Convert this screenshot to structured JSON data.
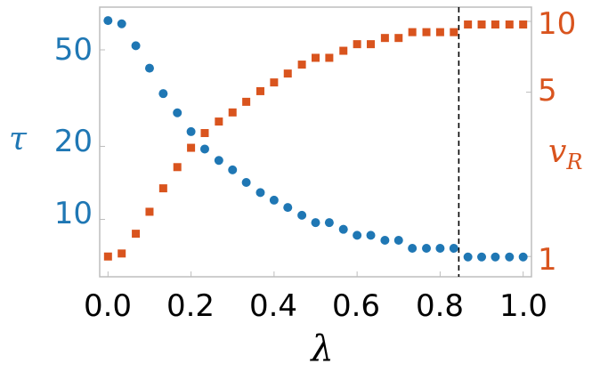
{
  "chart_data": {
    "type": "scatter",
    "title": "",
    "xlabel": "λ",
    "ylabel_left": "τ",
    "ylabel_right_main": "v",
    "ylabel_right_sub": "R",
    "xlim": [
      -0.02,
      1.02
    ],
    "ylim_left": [
      5.8,
      75
    ],
    "ylim_right": [
      0.82,
      11.5
    ],
    "yscale": "log",
    "x_ticks": [
      "0.0",
      "0.2",
      "0.4",
      "0.6",
      "0.8",
      "1.0"
    ],
    "y_left_ticks": [
      "10",
      "20",
      "50"
    ],
    "y_right_ticks": [
      "1",
      "5",
      "10"
    ],
    "vline_x": 0.845,
    "x": [
      0.0,
      0.033,
      0.067,
      0.1,
      0.133,
      0.167,
      0.2,
      0.233,
      0.267,
      0.3,
      0.333,
      0.367,
      0.4,
      0.433,
      0.467,
      0.5,
      0.533,
      0.567,
      0.6,
      0.633,
      0.667,
      0.7,
      0.733,
      0.767,
      0.8,
      0.833,
      0.867,
      0.9,
      0.933,
      0.967,
      1.0
    ],
    "series": [
      {
        "name": "τ",
        "axis": "left",
        "marker": "circle",
        "color": "#1f77b4",
        "values": [
          66,
          64,
          52,
          42,
          33,
          27.5,
          23,
          19.5,
          17.5,
          16,
          14.2,
          12.9,
          12,
          11.2,
          10.4,
          9.7,
          9.7,
          9.1,
          8.6,
          8.6,
          8.2,
          8.2,
          7.6,
          7.6,
          7.6,
          7.6,
          7.0,
          7.0,
          7.0,
          7.0,
          7.0
        ]
      },
      {
        "name": "v_R",
        "axis": "right",
        "marker": "square",
        "color": "#d9541e",
        "values": [
          1.0,
          1.03,
          1.25,
          1.55,
          1.95,
          2.4,
          2.9,
          3.35,
          3.75,
          4.1,
          4.55,
          5.05,
          5.5,
          6.0,
          6.55,
          7.0,
          7.0,
          7.5,
          8.0,
          8.0,
          8.5,
          8.5,
          9.0,
          9.0,
          9.0,
          9.0,
          9.7,
          9.7,
          9.7,
          9.7,
          9.7
        ]
      }
    ]
  },
  "colors": {
    "left_axis": "#1f77b4",
    "right_axis": "#d9541e",
    "frame": "#bdbdbd",
    "vline": "#000000"
  }
}
